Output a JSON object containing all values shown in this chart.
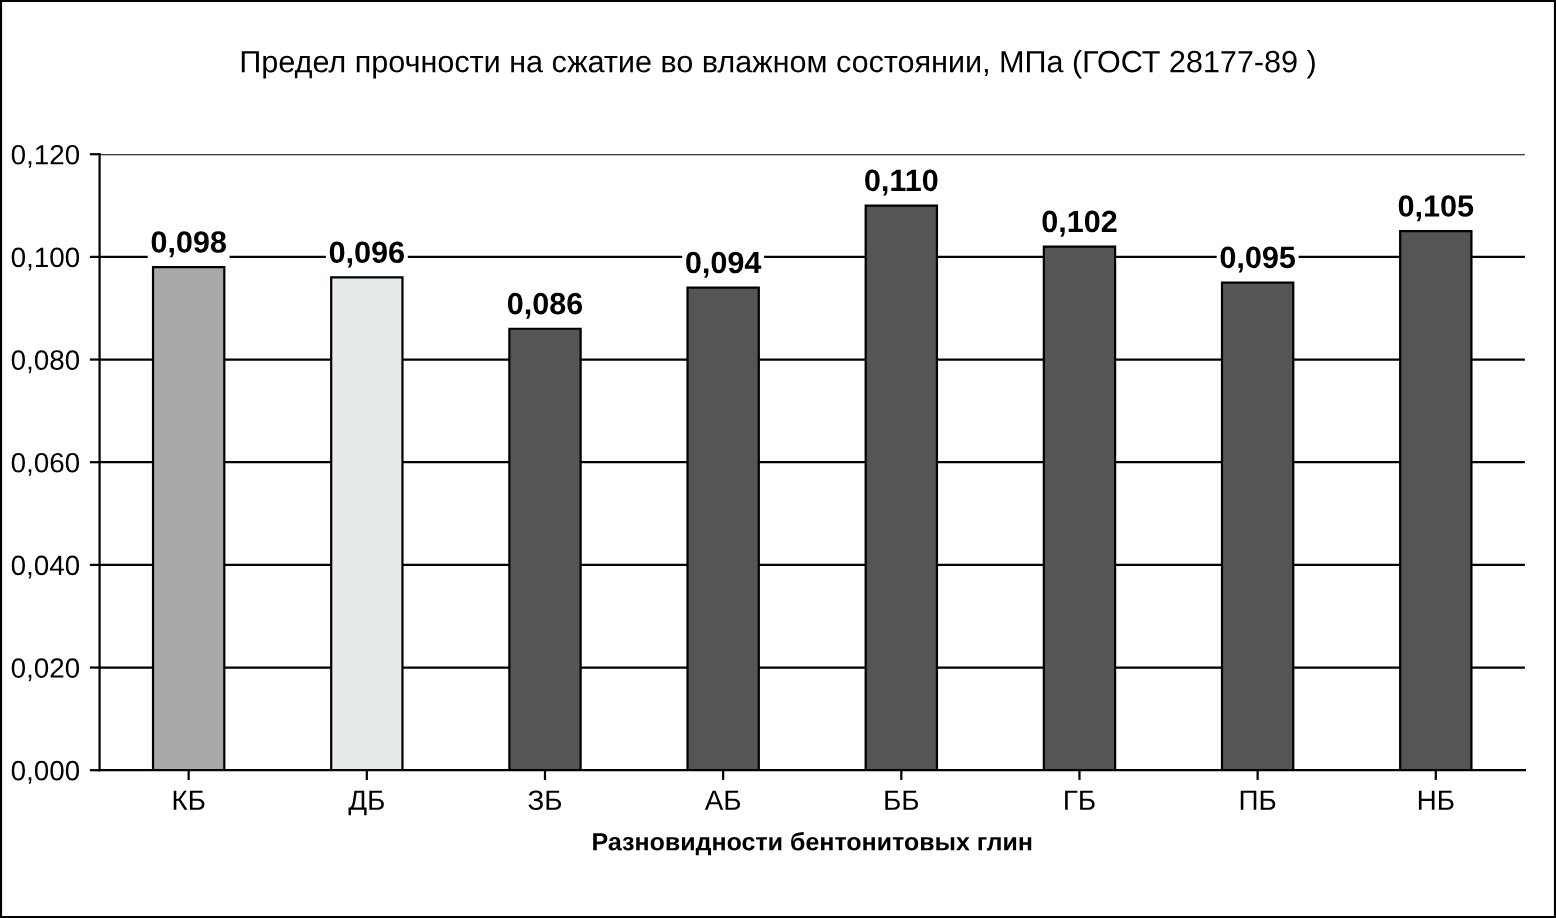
{
  "chart_data": {
    "type": "bar",
    "title": "Предел прочности на сжатие во влажном состоянии, МПа (ГОСТ 28177-89 )",
    "xlabel": "Разновидности бентонитовых глин",
    "categories": [
      "КБ",
      "ДБ",
      "ЗБ",
      "АБ",
      "ББ",
      "ГБ",
      "ПБ",
      "НБ"
    ],
    "values": [
      0.098,
      0.096,
      0.086,
      0.094,
      0.11,
      0.102,
      0.095,
      0.105
    ],
    "colors": [
      "#a8a8a8",
      "#e6eaea",
      "#555555",
      "#555555",
      "#555555",
      "#555555",
      "#555555",
      "#555555"
    ],
    "value_labels": [
      "0,098",
      "0,096",
      "0,086",
      "0,094",
      "0,110",
      "0,102",
      "0,095",
      "0,105"
    ],
    "ylim": [
      0,
      0.12
    ],
    "yticks": [
      {
        "value": 0,
        "label": "0,000"
      },
      {
        "value": 0.02,
        "label": "0,020"
      },
      {
        "value": 0.04,
        "label": "0,040"
      },
      {
        "value": 0.06,
        "label": "0,060"
      },
      {
        "value": 0.08,
        "label": "0,080"
      },
      {
        "value": 0.1,
        "label": "0,100"
      },
      {
        "value": 0.12,
        "label": "0,120"
      }
    ],
    "grid": "y",
    "legend": false
  }
}
